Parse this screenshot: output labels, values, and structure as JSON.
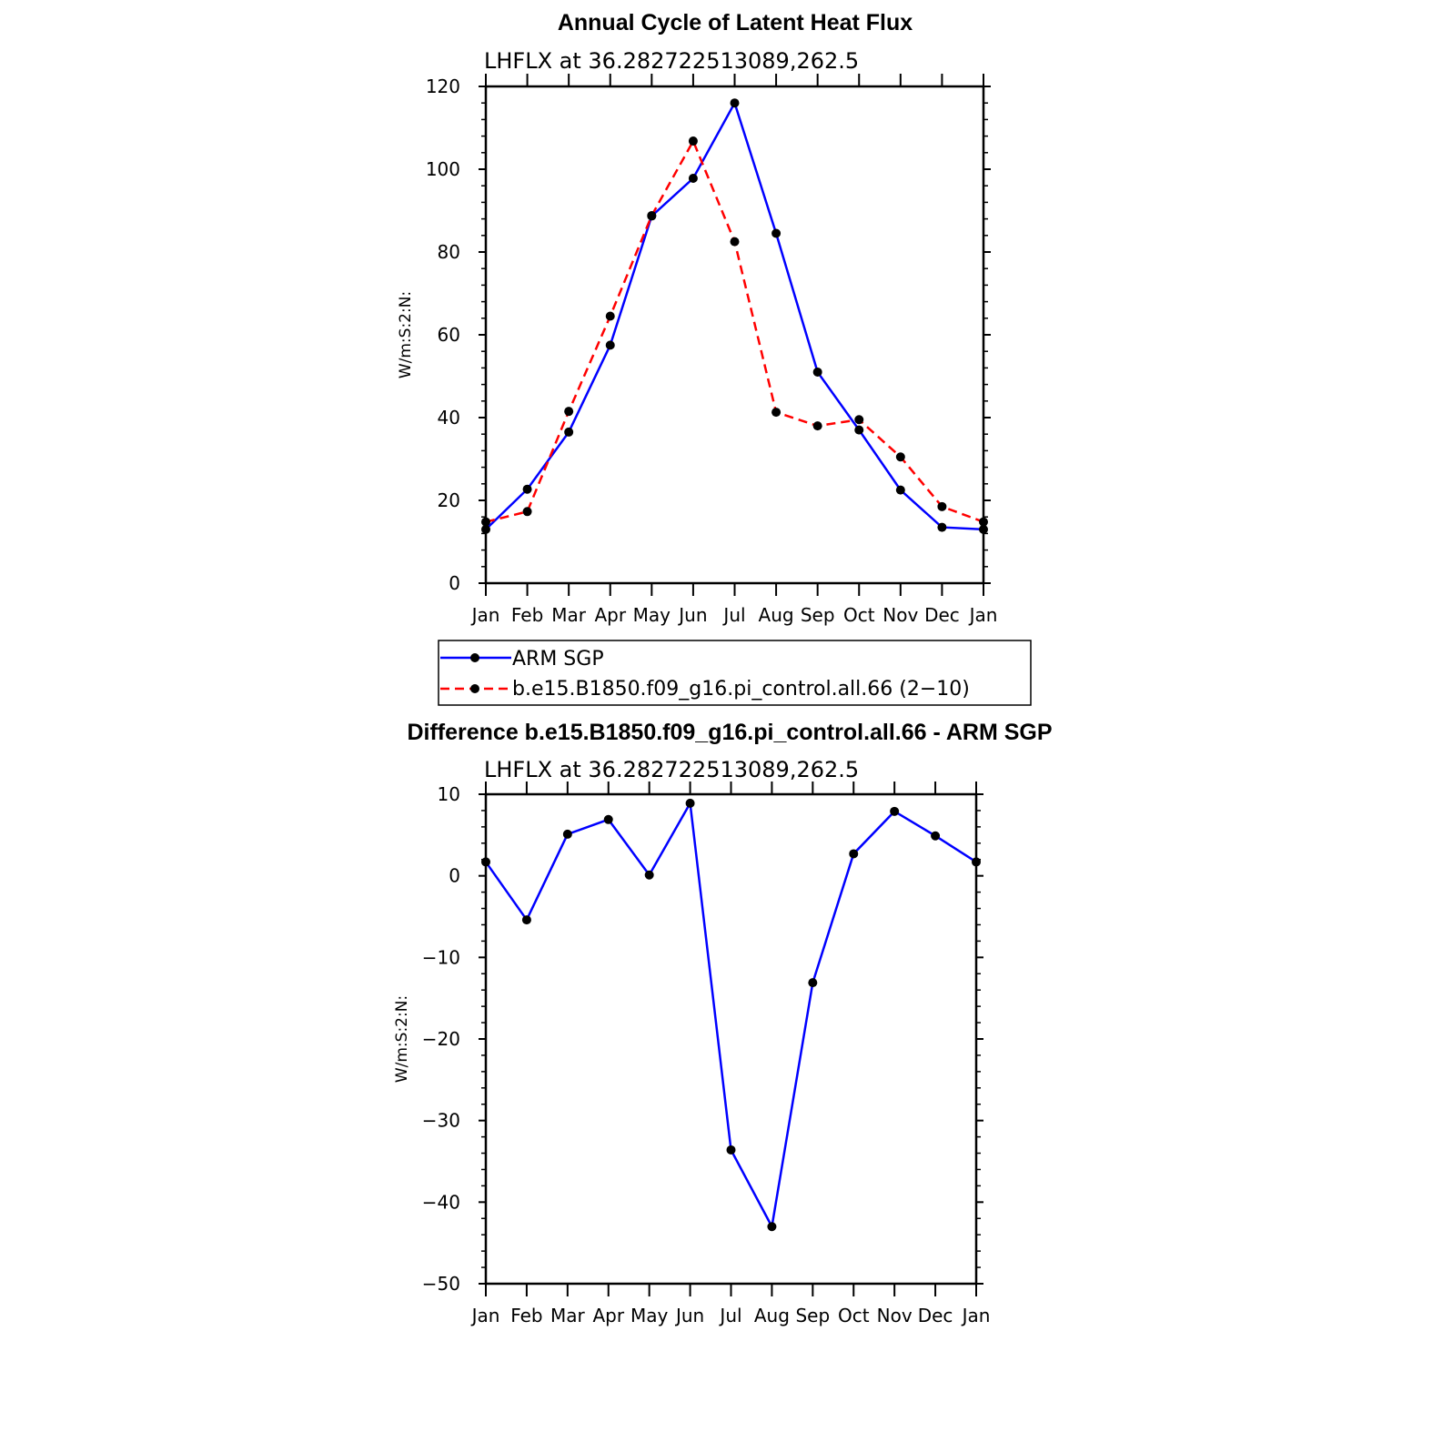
{
  "chart_data": [
    {
      "type": "line",
      "title": "Annual Cycle of Latent Heat Flux",
      "subtitle": "LHFLX at 36.282722513089,262.5",
      "ylabel": "W/m:S:2:N:",
      "xlabel": "",
      "ylim": [
        0,
        120
      ],
      "yticks": [
        "0",
        "20",
        "40",
        "60",
        "80",
        "100",
        "120"
      ],
      "categories": [
        "Jan",
        "Feb",
        "Mar",
        "Apr",
        "May",
        "Jun",
        "Jul",
        "Aug",
        "Sep",
        "Oct",
        "Nov",
        "Dec",
        "Jan"
      ],
      "series": [
        {
          "name": "ARM SGP",
          "color": "#0000ff",
          "dash": "solid",
          "values": [
            13,
            22.7,
            36.5,
            57.5,
            88.7,
            97.8,
            116,
            84.5,
            51,
            37,
            22.5,
            13.5,
            13
          ]
        },
        {
          "name": "b.e15.B1850.f09_g16.pi_control.all.66 (2−10)",
          "color": "#ff0000",
          "dash": "dashed",
          "values": [
            14.8,
            17.3,
            41.5,
            64.5,
            88.8,
            106.8,
            82.5,
            41.3,
            38,
            39.5,
            30.5,
            18.5,
            14.8
          ]
        }
      ],
      "legend_position": "bottom"
    },
    {
      "type": "line",
      "title": "Difference b.e15.B1850.f09_g16.pi_control.all.66 - ARM SGP",
      "subtitle": "LHFLX at 36.282722513089,262.5",
      "ylabel": "W/m:S:2:N:",
      "xlabel": "",
      "ylim": [
        -50,
        10
      ],
      "yticks": [
        "−50",
        "−40",
        "−30",
        "−20",
        "−10",
        "0",
        "10"
      ],
      "categories": [
        "Jan",
        "Feb",
        "Mar",
        "Apr",
        "May",
        "Jun",
        "Jul",
        "Aug",
        "Sep",
        "Oct",
        "Nov",
        "Dec",
        "Jan"
      ],
      "series": [
        {
          "color": "#0000ff",
          "dash": "solid",
          "values": [
            1.7,
            -5.4,
            5.1,
            6.9,
            0.1,
            8.9,
            -33.6,
            -43,
            -13.1,
            2.7,
            7.9,
            4.9,
            1.7
          ]
        }
      ]
    }
  ]
}
